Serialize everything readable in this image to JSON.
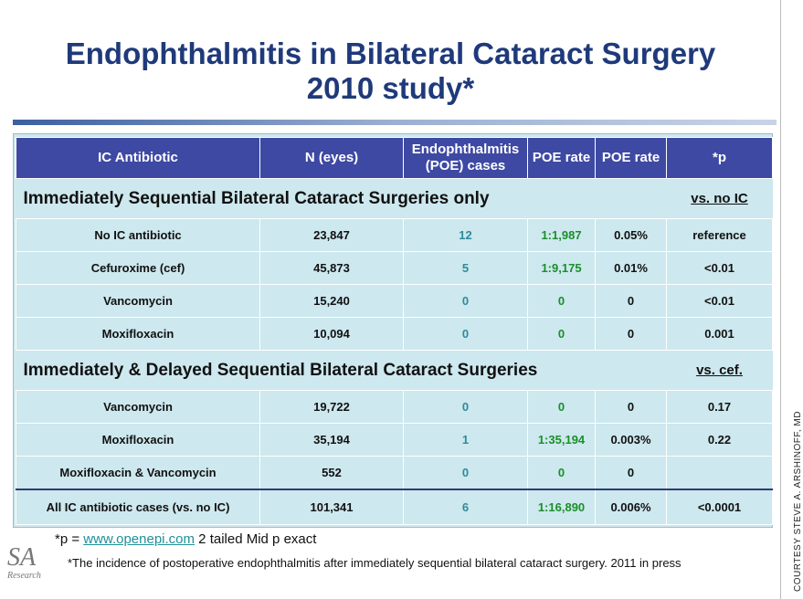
{
  "title": {
    "line1": "Endophthalmitis in Bilateral Cataract Surgery",
    "line2": "2010 study*"
  },
  "colors": {
    "header_bg": "#3e49a3",
    "cell_bg": "#cde8ee",
    "title": "#1f3a7a",
    "teal": "#2e8b9a",
    "green": "#1a8f2a"
  },
  "table": {
    "headers": [
      "IC Antibiotic",
      "N (eyes)",
      "Endophthalmitis (POE) cases",
      "POE rate",
      "POE rate",
      "*p"
    ],
    "section1": {
      "title": "Immediately Sequential Bilateral Cataract Surgeries only",
      "vs": "vs. no IC"
    },
    "rows1": [
      [
        "No IC antibiotic",
        "23,847",
        "12",
        "1:1,987",
        "0.05%",
        "reference"
      ],
      [
        "Cefuroxime  (cef)",
        "45,873",
        "5",
        "1:9,175",
        "0.01%",
        "<0.01"
      ],
      [
        "Vancomycin",
        "15,240",
        "0",
        "0",
        "0",
        "<0.01"
      ],
      [
        "Moxifloxacin",
        "10,094",
        "0",
        "0",
        "0",
        "0.001"
      ]
    ],
    "section2": {
      "title": "Immediately  & Delayed Sequential Bilateral Cataract Surgeries",
      "vs": "vs. cef."
    },
    "rows2": [
      [
        "Vancomycin",
        "19,722",
        "0",
        "0",
        "0",
        "0.17"
      ],
      [
        "Moxifloxacin",
        "35,194",
        "1",
        "1:35,194",
        "0.003%",
        "0.22"
      ],
      [
        "Moxifloxacin & Vancomycin",
        "552",
        "0",
        "0",
        "0",
        ""
      ]
    ],
    "total": [
      "All IC antibiotic cases (vs. no IC)",
      "101,341",
      "6",
      "1:16,890",
      "0.006%",
      "<0.0001"
    ]
  },
  "footnotes": {
    "p_prefix": "*p = ",
    "link": "www.openepi.com",
    "p_suffix": " 2 tailed  Mid p exact",
    "incidence": "*The incidence of postoperative endophthalmitis after immediately sequential bilateral cataract surgery. 2011 in press"
  },
  "logo": {
    "mark": "SA",
    "sub": "Research"
  },
  "courtesy": "COURTESY STEVE A. ARSHINOFF, MD"
}
